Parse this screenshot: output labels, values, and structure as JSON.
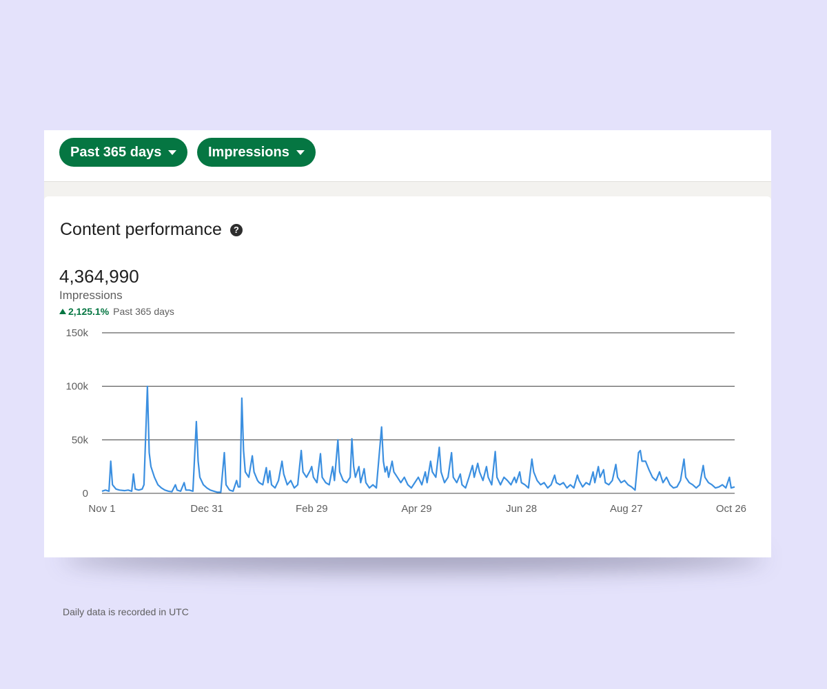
{
  "filters": {
    "range_label": "Past 365 days",
    "metric_label": "Impressions"
  },
  "panel": {
    "title": "Content performance",
    "help_icon": "question-circle-icon",
    "total_value": "4,364,990",
    "total_label": "Impressions",
    "change_value": "2,125.1%",
    "change_period": "Past 365 days",
    "footnote": "Daily data is recorded in UTC"
  },
  "colors": {
    "accent": "#057642",
    "line": "#3b8fe0",
    "background": "#e4e2fb"
  },
  "chart_data": {
    "type": "line",
    "ylabel": "",
    "xlabel": "",
    "ylim": [
      0,
      150000
    ],
    "y_ticks": [
      {
        "value": 0,
        "label": "0"
      },
      {
        "value": 50000,
        "label": "50k"
      },
      {
        "value": 100000,
        "label": "100k"
      },
      {
        "value": 150000,
        "label": "150k"
      }
    ],
    "x_ticks": [
      {
        "day": 0,
        "label": "Nov 1"
      },
      {
        "day": 60,
        "label": "Dec 31"
      },
      {
        "day": 120,
        "label": "Feb 29"
      },
      {
        "day": 180,
        "label": "Apr 29"
      },
      {
        "day": 240,
        "label": "Jun 28"
      },
      {
        "day": 300,
        "label": "Aug 27"
      },
      {
        "day": 360,
        "label": "Oct 26"
      }
    ],
    "grid": true,
    "series": [
      {
        "name": "Impressions",
        "points": [
          [
            0,
            2000
          ],
          [
            2,
            3000
          ],
          [
            4,
            2000
          ],
          [
            5,
            30000
          ],
          [
            6,
            8000
          ],
          [
            8,
            4000
          ],
          [
            10,
            3000
          ],
          [
            13,
            2500
          ],
          [
            15,
            3000
          ],
          [
            17,
            2000
          ],
          [
            18,
            18000
          ],
          [
            19,
            4000
          ],
          [
            21,
            3000
          ],
          [
            23,
            4000
          ],
          [
            24,
            8000
          ],
          [
            26,
            100000
          ],
          [
            27,
            38000
          ],
          [
            28,
            25000
          ],
          [
            30,
            15000
          ],
          [
            32,
            8000
          ],
          [
            34,
            5000
          ],
          [
            36,
            3000
          ],
          [
            38,
            2000
          ],
          [
            40,
            1500
          ],
          [
            42,
            8000
          ],
          [
            43,
            3000
          ],
          [
            45,
            2000
          ],
          [
            47,
            10000
          ],
          [
            48,
            3000
          ],
          [
            50,
            3000
          ],
          [
            52,
            2000
          ],
          [
            54,
            67000
          ],
          [
            55,
            30000
          ],
          [
            56,
            15000
          ],
          [
            58,
            8000
          ],
          [
            60,
            5000
          ],
          [
            62,
            3000
          ],
          [
            64,
            2000
          ],
          [
            66,
            1000
          ],
          [
            68,
            1000
          ],
          [
            70,
            38000
          ],
          [
            71,
            8000
          ],
          [
            73,
            3000
          ],
          [
            75,
            2000
          ],
          [
            77,
            12000
          ],
          [
            78,
            6000
          ],
          [
            79,
            6000
          ],
          [
            80,
            89000
          ],
          [
            81,
            40000
          ],
          [
            82,
            20000
          ],
          [
            84,
            15000
          ],
          [
            86,
            35000
          ],
          [
            87,
            20000
          ],
          [
            89,
            12000
          ],
          [
            90,
            10000
          ],
          [
            92,
            8000
          ],
          [
            94,
            24000
          ],
          [
            95,
            10000
          ],
          [
            96,
            21000
          ],
          [
            97,
            8000
          ],
          [
            99,
            5000
          ],
          [
            101,
            12000
          ],
          [
            103,
            30000
          ],
          [
            104,
            18000
          ],
          [
            106,
            8000
          ],
          [
            108,
            12000
          ],
          [
            110,
            5000
          ],
          [
            112,
            8000
          ],
          [
            114,
            40000
          ],
          [
            115,
            20000
          ],
          [
            117,
            15000
          ],
          [
            119,
            21000
          ],
          [
            120,
            25000
          ],
          [
            121,
            15000
          ],
          [
            123,
            10000
          ],
          [
            125,
            37000
          ],
          [
            126,
            15000
          ],
          [
            128,
            10000
          ],
          [
            130,
            8000
          ],
          [
            132,
            25000
          ],
          [
            133,
            12000
          ],
          [
            135,
            50000
          ],
          [
            136,
            20000
          ],
          [
            138,
            12000
          ],
          [
            140,
            10000
          ],
          [
            142,
            15000
          ],
          [
            143,
            51000
          ],
          [
            144,
            25000
          ],
          [
            145,
            15000
          ],
          [
            147,
            25000
          ],
          [
            148,
            10000
          ],
          [
            150,
            23000
          ],
          [
            151,
            10000
          ],
          [
            153,
            5000
          ],
          [
            155,
            8000
          ],
          [
            157,
            5000
          ],
          [
            160,
            62000
          ],
          [
            161,
            30000
          ],
          [
            162,
            20000
          ],
          [
            163,
            25000
          ],
          [
            164,
            15000
          ],
          [
            166,
            30000
          ],
          [
            167,
            20000
          ],
          [
            169,
            15000
          ],
          [
            171,
            10000
          ],
          [
            173,
            15000
          ],
          [
            175,
            8000
          ],
          [
            177,
            5000
          ],
          [
            179,
            10000
          ],
          [
            181,
            15000
          ],
          [
            183,
            8000
          ],
          [
            185,
            20000
          ],
          [
            186,
            10000
          ],
          [
            188,
            30000
          ],
          [
            189,
            20000
          ],
          [
            191,
            15000
          ],
          [
            193,
            43000
          ],
          [
            194,
            20000
          ],
          [
            196,
            10000
          ],
          [
            198,
            15000
          ],
          [
            200,
            38000
          ],
          [
            201,
            15000
          ],
          [
            203,
            10000
          ],
          [
            205,
            18000
          ],
          [
            206,
            8000
          ],
          [
            208,
            5000
          ],
          [
            210,
            15000
          ],
          [
            212,
            26000
          ],
          [
            213,
            15000
          ],
          [
            215,
            28000
          ],
          [
            216,
            20000
          ],
          [
            218,
            12000
          ],
          [
            220,
            25000
          ],
          [
            221,
            15000
          ],
          [
            223,
            8000
          ],
          [
            225,
            39000
          ],
          [
            226,
            15000
          ],
          [
            228,
            8000
          ],
          [
            230,
            15000
          ],
          [
            232,
            12000
          ],
          [
            234,
            8000
          ],
          [
            236,
            15000
          ],
          [
            237,
            10000
          ],
          [
            239,
            20000
          ],
          [
            240,
            10000
          ],
          [
            242,
            8000
          ],
          [
            244,
            5000
          ],
          [
            246,
            32000
          ],
          [
            247,
            20000
          ],
          [
            249,
            12000
          ],
          [
            251,
            8000
          ],
          [
            253,
            10000
          ],
          [
            255,
            5000
          ],
          [
            257,
            8000
          ],
          [
            259,
            17000
          ],
          [
            260,
            10000
          ],
          [
            262,
            8000
          ],
          [
            264,
            10000
          ],
          [
            266,
            5000
          ],
          [
            268,
            8000
          ],
          [
            270,
            5000
          ],
          [
            272,
            17000
          ],
          [
            273,
            12000
          ],
          [
            275,
            6000
          ],
          [
            277,
            10000
          ],
          [
            279,
            8000
          ],
          [
            281,
            20000
          ],
          [
            282,
            10000
          ],
          [
            284,
            25000
          ],
          [
            285,
            15000
          ],
          [
            287,
            22000
          ],
          [
            288,
            10000
          ],
          [
            290,
            8000
          ],
          [
            292,
            12000
          ],
          [
            294,
            27000
          ],
          [
            295,
            15000
          ],
          [
            297,
            10000
          ],
          [
            299,
            12000
          ],
          [
            301,
            8000
          ],
          [
            303,
            6000
          ],
          [
            305,
            3000
          ],
          [
            307,
            38000
          ],
          [
            308,
            40000
          ],
          [
            309,
            30000
          ],
          [
            311,
            30000
          ],
          [
            313,
            22000
          ],
          [
            315,
            15000
          ],
          [
            317,
            12000
          ],
          [
            319,
            20000
          ],
          [
            321,
            10000
          ],
          [
            323,
            15000
          ],
          [
            325,
            8000
          ],
          [
            327,
            5000
          ],
          [
            329,
            6000
          ],
          [
            331,
            12000
          ],
          [
            333,
            32000
          ],
          [
            334,
            15000
          ],
          [
            336,
            10000
          ],
          [
            338,
            8000
          ],
          [
            340,
            5000
          ],
          [
            342,
            8000
          ],
          [
            344,
            26000
          ],
          [
            345,
            15000
          ],
          [
            347,
            10000
          ],
          [
            349,
            8000
          ],
          [
            351,
            5000
          ],
          [
            353,
            6000
          ],
          [
            355,
            8000
          ],
          [
            357,
            5000
          ],
          [
            359,
            15000
          ],
          [
            360,
            5000
          ],
          [
            362,
            6000
          ]
        ]
      }
    ]
  }
}
